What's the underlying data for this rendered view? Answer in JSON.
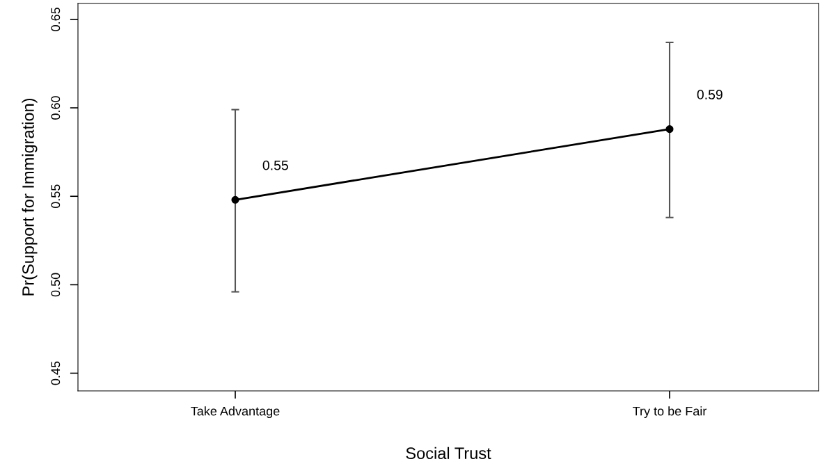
{
  "chart_data": {
    "type": "line",
    "xlabel": "Social Trust",
    "ylabel": "Pr(Support for Immigration)",
    "categories": [
      "Take Advantage",
      "Try to be Fair"
    ],
    "series": [
      {
        "color": "#000000",
        "values": [
          0.548,
          0.588
        ],
        "errors": [
          [
            0.496,
            0.599
          ],
          [
            0.538,
            0.637
          ]
        ],
        "value_labels": [
          "0.55",
          "0.59"
        ]
      }
    ],
    "ylim": [
      0.44,
      0.659
    ],
    "yticks": [
      {
        "value": 0.45,
        "label": "0.45"
      },
      {
        "value": 0.5,
        "label": "0.50"
      },
      {
        "value": 0.55,
        "label": "0.55"
      },
      {
        "value": 0.6,
        "label": "0.60"
      },
      {
        "value": 0.65,
        "label": "0.65"
      }
    ],
    "marker": "circle",
    "line_style": "solid",
    "grid": false
  }
}
